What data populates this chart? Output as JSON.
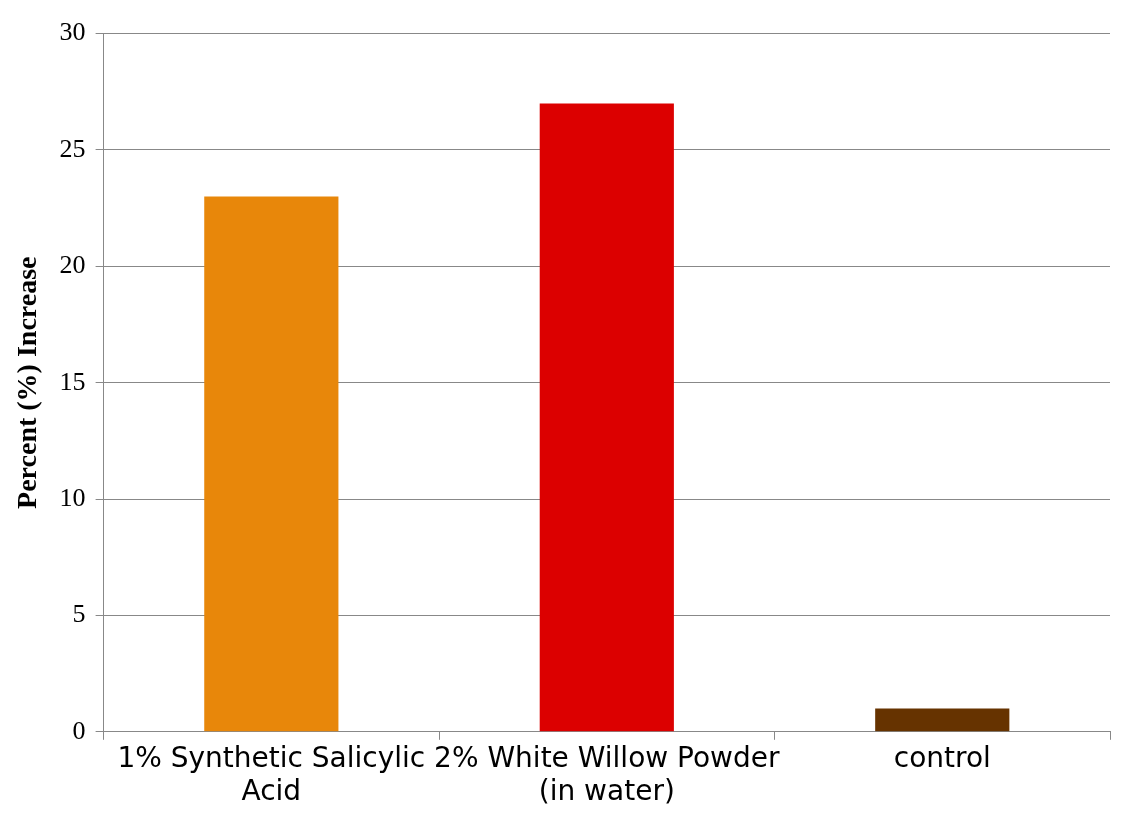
{
  "chart_data": {
    "type": "bar",
    "ylabel": "Percent (%) Increase",
    "categories": [
      "1% Synthetic Salicylic Acid",
      "2% White Willow Powder (in water)",
      "control"
    ],
    "values": [
      23,
      27,
      1
    ],
    "colors": [
      "#e8870a",
      "#dc0000",
      "#663300"
    ],
    "ylim": [
      0,
      30
    ],
    "yticks": [
      0,
      5,
      10,
      15,
      20,
      25,
      30
    ],
    "grid": "y",
    "legend": false
  }
}
